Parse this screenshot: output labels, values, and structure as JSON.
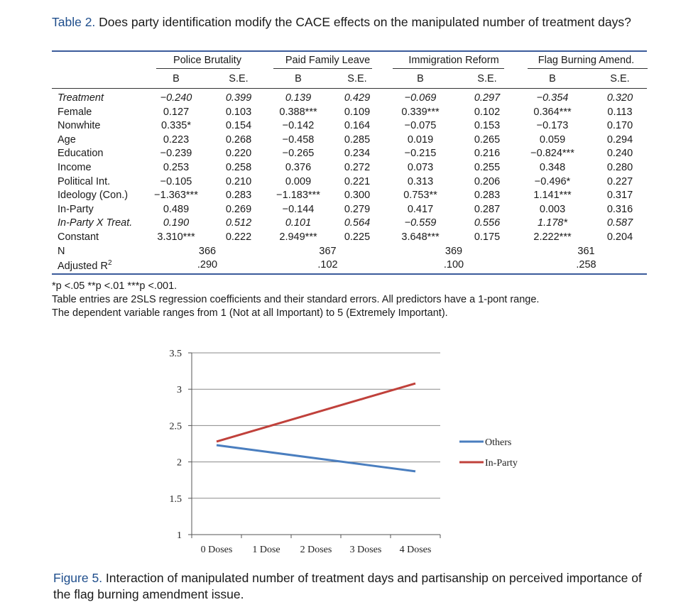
{
  "table": {
    "caption_label": "Table 2.",
    "caption_text": " Does party identification modify the CACE effects on the manipulated number of treatment days?",
    "groups": [
      "Police Brutality",
      "Paid Family Leave",
      "Immigration Reform",
      "Flag Burning Amend."
    ],
    "col_headers": [
      "B",
      "S.E.",
      "B",
      "S.E.",
      "B",
      "S.E.",
      "B",
      "S.E."
    ],
    "rows": [
      {
        "label": "Treatment",
        "italic": true,
        "cells": [
          "−0.240",
          "0.399",
          "0.139",
          "0.429",
          "−0.069",
          "0.297",
          "−0.354",
          "0.320"
        ]
      },
      {
        "label": "Female",
        "italic": false,
        "cells": [
          "0.127",
          "0.103",
          "0.388***",
          "0.109",
          "0.339***",
          "0.102",
          "0.364***",
          "0.113"
        ]
      },
      {
        "label": "Nonwhite",
        "italic": false,
        "cells": [
          "0.335*",
          "0.154",
          "−0.142",
          "0.164",
          "−0.075",
          "0.153",
          "−0.173",
          "0.170"
        ]
      },
      {
        "label": "Age",
        "italic": false,
        "cells": [
          "0.223",
          "0.268",
          "−0.458",
          "0.285",
          "0.019",
          "0.265",
          "0.059",
          "0.294"
        ]
      },
      {
        "label": "Education",
        "italic": false,
        "cells": [
          "−0.239",
          "0.220",
          "−0.265",
          "0.234",
          "−0.215",
          "0.216",
          "−0.824***",
          "0.240"
        ]
      },
      {
        "label": "Income",
        "italic": false,
        "cells": [
          "0.253",
          "0.258",
          "0.376",
          "0.272",
          "0.073",
          "0.255",
          "0.348",
          "0.280"
        ]
      },
      {
        "label": "Political Int.",
        "italic": false,
        "cells": [
          "−0.105",
          "0.210",
          "0.009",
          "0.221",
          "0.313",
          "0.206",
          "−0.496*",
          "0.227"
        ]
      },
      {
        "label": "Ideology (Con.)",
        "italic": false,
        "cells": [
          "−1.363***",
          "0.283",
          "−1.183***",
          "0.300",
          "0.753**",
          "0.283",
          "1.141***",
          "0.317"
        ]
      },
      {
        "label": "In-Party",
        "italic": false,
        "cells": [
          "0.489",
          "0.269",
          "−0.144",
          "0.279",
          "0.417",
          "0.287",
          "0.003",
          "0.316"
        ]
      },
      {
        "label": "In-Party X Treat.",
        "italic": true,
        "cells": [
          "0.190",
          "0.512",
          "0.101",
          "0.564",
          "−0.559",
          "0.556",
          "1.178*",
          "0.587"
        ]
      },
      {
        "label": "Constant",
        "italic": false,
        "cells": [
          "3.310***",
          "0.222",
          "2.949***",
          "0.225",
          "3.648***",
          "0.175",
          "2.222***",
          "0.204"
        ]
      }
    ],
    "n_row": {
      "label": "N",
      "values": [
        "366",
        "367",
        "369",
        "361"
      ]
    },
    "r2_row": {
      "label": "Adjusted R",
      "sup": "2",
      "values": [
        ".290",
        ".102",
        ".100",
        ".258"
      ]
    },
    "notes": [
      "*p <.05 **p <.01 ***p <.001.",
      "Table entries are 2SLS regression coefficients and their standard errors. All predictors have a 1-pont range.",
      "The dependent variable ranges from 1 (Not at all Important) to 5 (Extremely Important)."
    ]
  },
  "chart_data": {
    "type": "line",
    "categories": [
      "0 Doses",
      "1 Dose",
      "2 Doses",
      "3 Doses",
      "4 Doses"
    ],
    "ylim": [
      1,
      3.5
    ],
    "yticks": [
      "1",
      "1.5",
      "2",
      "2.5",
      "3",
      "3.5"
    ],
    "ytick_values": [
      1,
      1.5,
      2,
      2.5,
      3,
      3.5
    ],
    "grid": true,
    "legend_position": "right",
    "series": [
      {
        "name": "Others",
        "color": "#4a7ebf",
        "values": [
          2.23,
          2.14,
          2.05,
          1.96,
          1.87
        ]
      },
      {
        "name": "In-Party",
        "color": "#c0413b",
        "values": [
          2.28,
          2.48,
          2.68,
          2.88,
          3.08
        ]
      }
    ]
  },
  "figure": {
    "caption_label": "Figure 5.",
    "caption_text": " Interaction of manipulated number of treatment days and partisanship on perceived importance of the flag burning amendment issue."
  },
  "colors": {
    "accent": "#1f4e8c",
    "rule": "#3b5b9b"
  }
}
